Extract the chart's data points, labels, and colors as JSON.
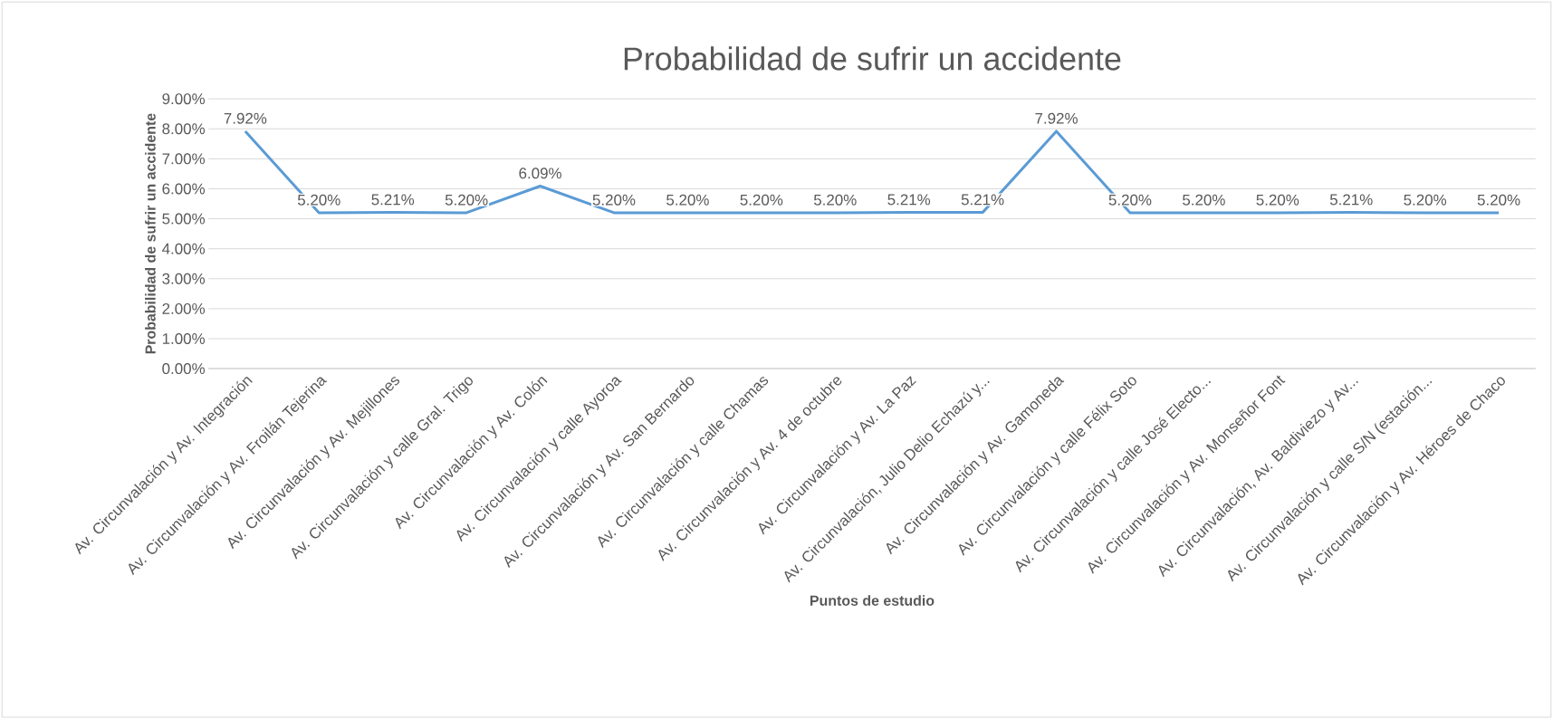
{
  "chart_data": {
    "type": "line",
    "title": "Probabilidad de sufrir un accidente",
    "xlabel": "Puntos de estudio",
    "ylabel": "Probabilidad de sufrir un accidente",
    "categories": [
      "Av. Circunvalación y Av. Integración",
      "Av. Circunvalación y Av. Froilán Tejerina",
      "Av. Circunvalación y Av. Mejillones",
      "Av. Circunvalación y calle Gral. Trigo",
      "Av. Circunvalación y Av. Colón",
      "Av. Circunvalación y calle Ayoroa",
      "Av. Circunvalación y Av. San Bernardo",
      "Av. Circunvalación y calle Chamas",
      "Av. Circunvalación y Av. 4 de octubre",
      "Av. Circunvalación y Av. La Paz",
      "Av. Circunvalación, Julio Delio Echazú y...",
      "Av. Circunvalación y Av. Gamoneda",
      "Av. Circunvalación y calle Félix Soto",
      "Av. Circunvalación y calle José Electo...",
      "Av. Circunvalación y Av. Monseñor Font",
      "Av. Circunvalación, Av. Baldiviezo y Av...",
      "Av. Circunvalación y calle S/N (estación...",
      "Av. Circunvalación y Av. Héroes de Chaco"
    ],
    "series": [
      {
        "color": "#5b9bd5",
        "values": [
          7.92,
          5.2,
          5.21,
          5.2,
          6.09,
          5.2,
          5.2,
          5.2,
          5.2,
          5.21,
          5.21,
          7.92,
          5.2,
          5.2,
          5.2,
          5.21,
          5.2,
          5.2
        ],
        "value_labels": [
          "7.92%",
          "5.20%",
          "5.21%",
          "5.20%",
          "6.09%",
          "5.20%",
          "5.20%",
          "5.20%",
          "5.20%",
          "5.21%",
          "5.21%",
          "7.92%",
          "5.20%",
          "5.20%",
          "5.20%",
          "5.21%",
          "5.20%",
          "5.20%"
        ]
      }
    ],
    "ylim": [
      0,
      9
    ],
    "yticks": [
      {
        "value": 0,
        "label": "0.00%"
      },
      {
        "value": 1,
        "label": "1.00%"
      },
      {
        "value": 2,
        "label": "2.00%"
      },
      {
        "value": 3,
        "label": "3.00%"
      },
      {
        "value": 4,
        "label": "4.00%"
      },
      {
        "value": 5,
        "label": "5.00%"
      },
      {
        "value": 6,
        "label": "6.00%"
      },
      {
        "value": 7,
        "label": "7.00%"
      },
      {
        "value": 8,
        "label": "8.00%"
      },
      {
        "value": 9,
        "label": "9.00%"
      }
    ],
    "grid": "y",
    "marker": "none",
    "line_style": "solid"
  }
}
